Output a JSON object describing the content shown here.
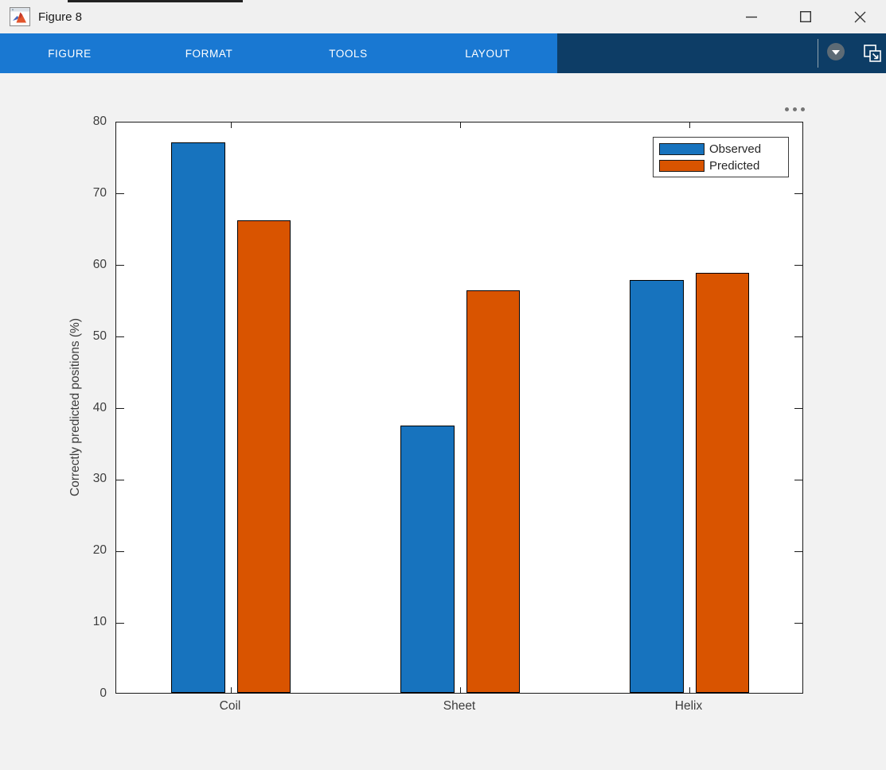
{
  "window": {
    "title": "Figure 8",
    "icons": {
      "titlebar": "matlab-figure-icon",
      "window_controls": [
        "minimize-icon",
        "maximize-icon",
        "close-icon"
      ]
    }
  },
  "toolbar": {
    "tabs": [
      "FIGURE",
      "FORMAT",
      "TOOLS",
      "LAYOUT"
    ],
    "icons": [
      "chevron-down-icon",
      "copy-figure-icon"
    ],
    "colors": {
      "tabs_background": "#1978D2",
      "right_background": "#0D3D66"
    }
  },
  "axes_toolbar": {
    "icon": "ellipsis-icon"
  },
  "chart_data": {
    "type": "bar",
    "title": "",
    "categories": [
      "Coil",
      "Sheet",
      "Helix"
    ],
    "series": [
      {
        "name": "Observed",
        "color": "#1773BE",
        "values": [
          77.0,
          37.4,
          57.7
        ]
      },
      {
        "name": "Predicted",
        "color": "#D95400",
        "values": [
          66.1,
          56.3,
          58.8
        ]
      }
    ],
    "xlabel": "",
    "ylabel": "Correctly predicted positions (%)",
    "ylim": [
      0,
      80
    ],
    "yticks": [
      0,
      10,
      20,
      30,
      40,
      50,
      60,
      70,
      80
    ],
    "grid": false,
    "legend_position": "top-right",
    "bar_edge_color": "#000000",
    "axes_box": true
  }
}
